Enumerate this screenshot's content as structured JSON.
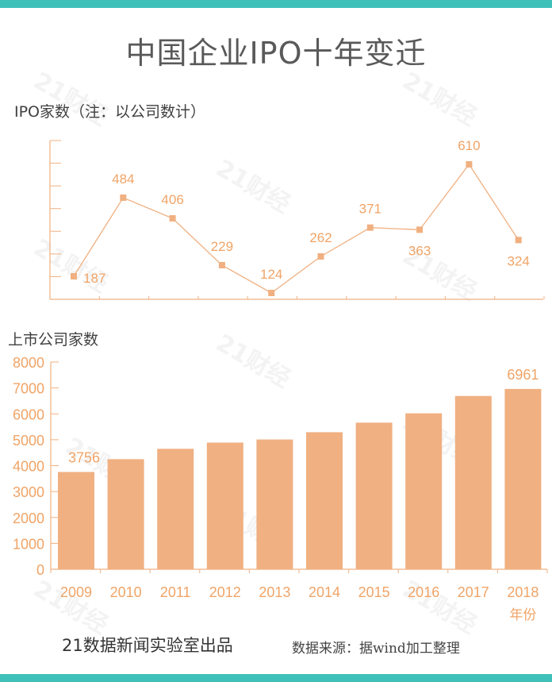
{
  "title": "中国企业IPO十年变迁",
  "watermark": "21财经",
  "colors": {
    "accent": "#f0b081",
    "band": "#3fc1b9",
    "label": "#f0a467",
    "axis": "#f0b081"
  },
  "line_section": {
    "label": "IPO家数（注：以公司数计）"
  },
  "bar_section": {
    "label": "上市公司家数",
    "year_unit": "年份"
  },
  "footer": {
    "left": "21数据新闻实验室出品",
    "right": "数据来源：据wind加工整理"
  },
  "chart_data": [
    {
      "type": "line",
      "title": "IPO家数（注：以公司数计）",
      "categories": [
        "2009",
        "2010",
        "2011",
        "2012",
        "2013",
        "2014",
        "2015",
        "2016",
        "2017",
        "2018"
      ],
      "values": [
        187,
        484,
        406,
        229,
        124,
        262,
        371,
        363,
        610,
        324
      ],
      "ylim": [
        100,
        700
      ],
      "grid": false
    },
    {
      "type": "bar",
      "title": "上市公司家数",
      "categories": [
        "2009",
        "2010",
        "2011",
        "2012",
        "2013",
        "2014",
        "2015",
        "2016",
        "2017",
        "2018"
      ],
      "values": [
        3756,
        4250,
        4650,
        4890,
        5010,
        5290,
        5660,
        6020,
        6690,
        6961
      ],
      "labeled": [
        3756,
        null,
        null,
        null,
        null,
        null,
        null,
        null,
        null,
        6961
      ],
      "xlabel": "年份",
      "yticks": [
        "0",
        "1000",
        "2000",
        "3000",
        "4000",
        "5000",
        "6000",
        "7000",
        "8000"
      ],
      "ylim": [
        0,
        8000
      ],
      "grid": false
    }
  ]
}
